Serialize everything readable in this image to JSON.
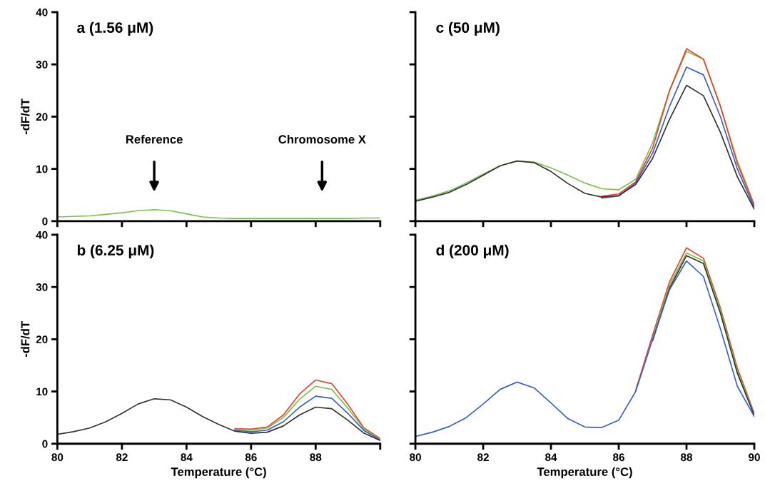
{
  "chart_data": [
    {
      "type": "line",
      "title": "a (1.56 μM)",
      "ylabel": "-dF/dT",
      "xlim": [
        80,
        90
      ],
      "ylim": [
        0,
        40
      ],
      "xticks": [
        80,
        82,
        84,
        86,
        88,
        90
      ],
      "yticks": [
        0,
        10,
        20,
        30,
        40
      ],
      "tick_labels": "y",
      "grid": false,
      "legend": false,
      "x": [
        80,
        80.5,
        81,
        81.5,
        82,
        82.5,
        83,
        83.5,
        84,
        84.5,
        85,
        85.5,
        86,
        86.5,
        87,
        87.5,
        88,
        88.5,
        89,
        89.5,
        90
      ],
      "annotations": [
        "Reference",
        "Chromosome X"
      ],
      "series": [
        {
          "color": "#7cc04a",
          "values": [
            0.8,
            0.9,
            1.0,
            1.3,
            1.6,
            2.0,
            2.2,
            2.0,
            1.4,
            0.8,
            0.6,
            0.5,
            0.5,
            0.5,
            0.5,
            0.5,
            0.5,
            0.5,
            0.5,
            0.6,
            0.6
          ]
        }
      ]
    },
    {
      "type": "line",
      "title": "c (50 μM)",
      "xlim": [
        80,
        90
      ],
      "ylim": [
        0,
        40
      ],
      "xticks": [
        80,
        82,
        84,
        86,
        88,
        90
      ],
      "yticks": [
        0,
        10,
        20,
        30,
        40
      ],
      "tick_labels": false,
      "grid": false,
      "legend": false,
      "x": [
        80,
        80.5,
        81,
        81.5,
        82,
        82.5,
        83,
        83.5,
        84,
        84.5,
        85,
        85.5,
        86,
        86.5,
        87,
        87.5,
        88,
        88.5,
        89,
        89.5,
        90
      ],
      "series": [
        {
          "color": "#7cc04a",
          "values": [
            4.0,
            4.8,
            5.8,
            7.3,
            9.0,
            10.6,
            11.5,
            11.3,
            10.2,
            8.8,
            7.3,
            6.2,
            6.0,
            8.0,
            15,
            25,
            32.5,
            31,
            22,
            11.5,
            3.2
          ]
        },
        {
          "color": "#e8412c",
          "values": [
            null,
            null,
            null,
            null,
            null,
            null,
            null,
            null,
            null,
            null,
            null,
            4.8,
            5.2,
            7.5,
            14,
            25,
            33,
            31,
            22,
            11,
            3
          ]
        },
        {
          "color": "#3a5fcd",
          "values": [
            null,
            null,
            null,
            null,
            null,
            null,
            null,
            null,
            null,
            null,
            null,
            4.4,
            4.8,
            7.3,
            13,
            22,
            29.5,
            28,
            20,
            10,
            2.6
          ]
        },
        {
          "color": "#333333",
          "values": [
            3.8,
            4.6,
            5.5,
            7.0,
            8.8,
            10.6,
            11.5,
            11.2,
            9.5,
            7.2,
            5.3,
            4.6,
            4.9,
            7.0,
            12,
            19.5,
            26,
            24,
            17,
            8.5,
            2.3
          ]
        }
      ]
    },
    {
      "type": "line",
      "title": "b (6.25 μM)",
      "xlabel": "Temperature (°C)",
      "ylabel": "-dF/dT",
      "xlim": [
        80,
        90
      ],
      "ylim": [
        0,
        40
      ],
      "xticks": [
        80,
        82,
        84,
        86,
        88,
        {
          "value": 90,
          "label": null
        }
      ],
      "yticks": [
        0,
        10,
        20,
        30,
        40
      ],
      "grid": false,
      "legend": false,
      "x": [
        80,
        80.5,
        81,
        81.5,
        82,
        82.5,
        83,
        83.5,
        84,
        84.5,
        85,
        85.5,
        86,
        86.5,
        87,
        87.5,
        88,
        88.5,
        89,
        89.5,
        90
      ],
      "series": [
        {
          "color": "#e8412c",
          "values": [
            null,
            null,
            null,
            null,
            null,
            null,
            null,
            null,
            null,
            null,
            null,
            2.9,
            2.8,
            3.2,
            5.5,
            9.5,
            12.2,
            11.5,
            7.5,
            3.0,
            1.0
          ]
        },
        {
          "color": "#7cc04a",
          "values": [
            null,
            null,
            null,
            null,
            null,
            null,
            null,
            null,
            null,
            null,
            null,
            2.8,
            2.6,
            3.0,
            5.0,
            8.5,
            11.0,
            10.4,
            6.8,
            2.8,
            0.8
          ]
        },
        {
          "color": "#3a5fcd",
          "values": [
            null,
            null,
            null,
            null,
            null,
            null,
            null,
            null,
            null,
            null,
            null,
            2.6,
            2.3,
            2.6,
            4.2,
            7.0,
            9.1,
            8.7,
            5.8,
            2.5,
            0.7
          ]
        },
        {
          "color": "#333333",
          "values": [
            1.8,
            2.3,
            3.0,
            4.2,
            5.8,
            7.6,
            8.6,
            8.4,
            7.0,
            5.2,
            3.7,
            2.4,
            2.0,
            2.2,
            3.4,
            5.5,
            7.0,
            6.7,
            4.5,
            2.0,
            0.6
          ]
        }
      ]
    },
    {
      "type": "line",
      "title": "d (200 μM)",
      "xlabel": "Temperature (°C)",
      "xlim": [
        80,
        90
      ],
      "ylim": [
        0,
        40
      ],
      "xticks": [
        80,
        82,
        84,
        86,
        88,
        90
      ],
      "yticks": [
        0,
        10,
        20,
        30,
        40
      ],
      "tick_labels": "x",
      "grid": false,
      "legend": false,
      "x": [
        80,
        80.5,
        81,
        81.5,
        82,
        82.5,
        83,
        83.5,
        84,
        84.5,
        85,
        85.5,
        86,
        86.5,
        87,
        87.5,
        88,
        88.5,
        89,
        89.5,
        90
      ],
      "series": [
        {
          "color": "#e8412c",
          "values": [
            null,
            null,
            null,
            null,
            null,
            null,
            null,
            null,
            null,
            null,
            null,
            null,
            null,
            10.2,
            20.8,
            31,
            37.5,
            35.5,
            26,
            14.5,
            5.8
          ]
        },
        {
          "color": "#7cc04a",
          "values": [
            null,
            null,
            null,
            null,
            null,
            null,
            null,
            null,
            null,
            null,
            null,
            null,
            null,
            null,
            20.3,
            30.4,
            36.5,
            35,
            25.5,
            14,
            5.6
          ]
        },
        {
          "color": "#333333",
          "values": [
            null,
            null,
            null,
            null,
            null,
            null,
            null,
            null,
            null,
            null,
            null,
            null,
            null,
            null,
            19.7,
            29.8,
            36,
            34.5,
            25,
            13.5,
            5.4
          ]
        },
        {
          "color": "#3a5fcd",
          "values": [
            1.4,
            2.2,
            3.3,
            5.0,
            7.6,
            10.4,
            11.8,
            10.7,
            7.8,
            4.8,
            3.2,
            3.1,
            4.5,
            10,
            20,
            29.5,
            35,
            32,
            22,
            11,
            5.2
          ]
        }
      ]
    }
  ]
}
